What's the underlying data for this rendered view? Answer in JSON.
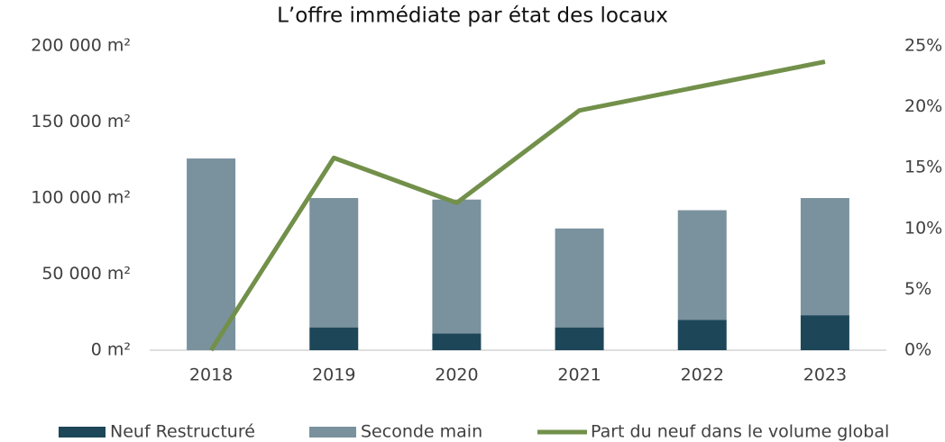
{
  "chart_data": {
    "type": "bar",
    "stacked": true,
    "title": "L’offre immédiate par état des locaux",
    "categories": [
      "2018",
      "2019",
      "2020",
      "2021",
      "2022",
      "2023"
    ],
    "series": [
      {
        "name": "Neuf Restructuré",
        "color": "#1d4659",
        "values": [
          0,
          15000,
          11000,
          15000,
          20000,
          23000
        ]
      },
      {
        "name": "Seconde main",
        "color": "#7a929e",
        "values": [
          126000,
          85000,
          88000,
          65000,
          72000,
          77000
        ]
      },
      {
        "name": "Part du neuf dans le volume global",
        "type": "line",
        "axis": "y2",
        "color": "#72904a",
        "values": [
          0,
          15.8,
          12.1,
          19.7,
          21.7,
          23.7
        ]
      }
    ],
    "ylim": [
      0,
      200000
    ],
    "yticks": [
      {
        "value": 0,
        "label": "0 m²"
      },
      {
        "value": 50000,
        "label": "50 000 m²"
      },
      {
        "value": 100000,
        "label": "100 000 m²"
      },
      {
        "value": 150000,
        "label": "150 000 m²"
      },
      {
        "value": 200000,
        "label": "200 000 m²"
      }
    ],
    "y2lim": [
      0,
      25
    ],
    "y2ticks": [
      {
        "value": 0,
        "label": "0%"
      },
      {
        "value": 5,
        "label": "5%"
      },
      {
        "value": 10,
        "label": "10%"
      },
      {
        "value": 15,
        "label": "15%"
      },
      {
        "value": 20,
        "label": "20%"
      },
      {
        "value": 25,
        "label": "25%"
      }
    ],
    "grid": false,
    "legend": "bottom"
  }
}
